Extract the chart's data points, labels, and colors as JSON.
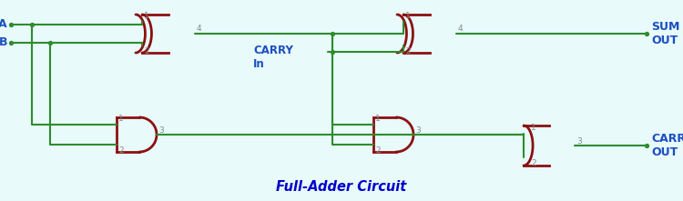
{
  "title": "Full-Adder Circuit",
  "title_color": "#0000CC",
  "wire_color": "#2E8B2E",
  "gate_color": "#8B1010",
  "label_color": "#1A4FC0",
  "pin_color": "#888888",
  "dot_color": "#2E8B2E",
  "bg_color": "#E8FAFA",
  "output_sum": "SUM\nOUT",
  "output_carry": "CARRY\nOUT",
  "carry_in_label": "CARRY\nIn",
  "label_a": "A",
  "label_b": "B"
}
